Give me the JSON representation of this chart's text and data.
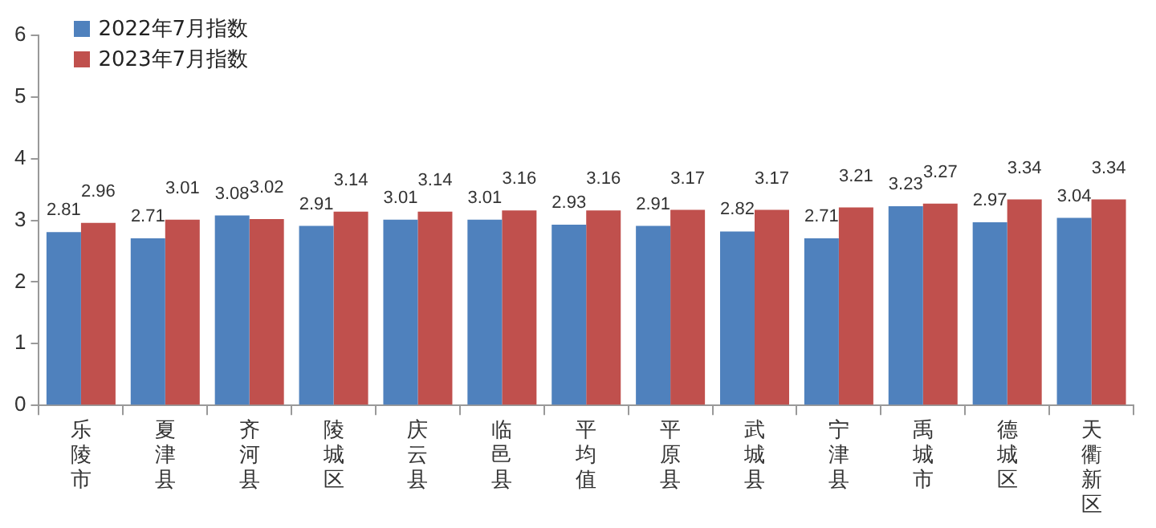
{
  "chart_data": {
    "type": "bar",
    "categories": [
      "乐陵市",
      "夏津县",
      "齐河县",
      "陵城区",
      "庆云县",
      "临邑县",
      "平均值",
      "平原县",
      "武城县",
      "宁津县",
      "禹城市",
      "德城区",
      "天衢新区"
    ],
    "series": [
      {
        "name": "2022年7月指数",
        "color": "#4f81bd",
        "values": [
          2.81,
          2.71,
          3.08,
          2.91,
          3.01,
          3.01,
          2.93,
          2.91,
          2.82,
          2.71,
          3.23,
          2.97,
          3.04
        ]
      },
      {
        "name": "2023年7月指数",
        "color": "#c0504d",
        "values": [
          2.96,
          3.01,
          3.02,
          3.14,
          3.14,
          3.16,
          3.16,
          3.17,
          3.17,
          3.21,
          3.27,
          3.34,
          3.34
        ]
      }
    ],
    "ylim": [
      0,
      6
    ],
    "yticks": [
      0,
      1,
      2,
      3,
      4,
      5,
      6
    ],
    "grid": false,
    "legend": "top left",
    "data_labels": true
  }
}
